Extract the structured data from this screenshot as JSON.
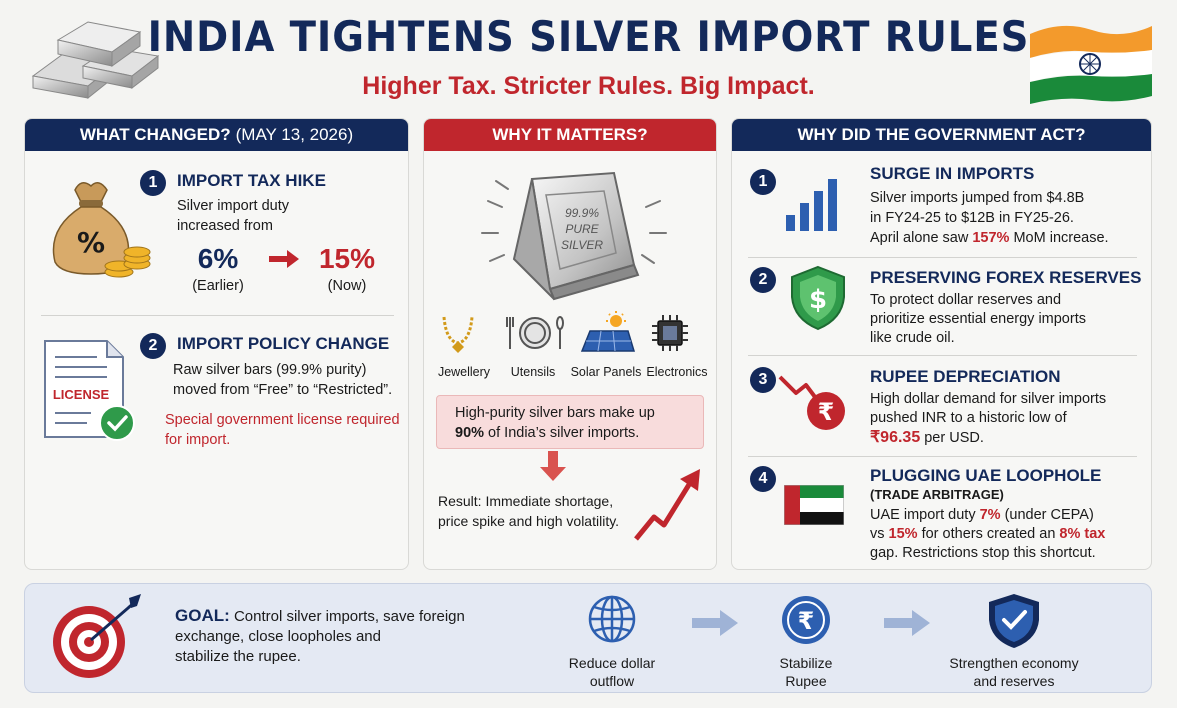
{
  "header": {
    "title": "INDIA TIGHTENS SILVER IMPORT RULES",
    "subtitle": "Higher Tax. Stricter Rules. Big Impact."
  },
  "left_panel": {
    "heading": "WHAT CHANGED?",
    "heading_date": "(MAY 13, 2026)",
    "items": [
      {
        "num": "1",
        "title": "IMPORT TAX HIKE",
        "text_line1": "Silver import duty",
        "text_line2": "increased from",
        "old_value": "6%",
        "old_label": "(Earlier)",
        "new_value": "15%",
        "new_label": "(Now)",
        "icon_symbol": "%"
      },
      {
        "num": "2",
        "title": "IMPORT POLICY CHANGE",
        "text_line1": "Raw silver bars (99.9% purity)",
        "text_line2": "moved from “Free” to “Restricted”.",
        "note_line1": "Special government license required",
        "note_line2": "for import.",
        "doc_label": "LICENSE"
      }
    ]
  },
  "middle_panel": {
    "heading": "WHY IT MATTERS?",
    "bar_text": [
      "99.9%",
      "PURE",
      "SILVER"
    ],
    "uses": [
      "Jewellery",
      "Utensils",
      "Solar Panels",
      "Electronics"
    ],
    "callout_line1": "High-purity silver bars make up",
    "callout_bold": "90%",
    "callout_line2_rest": " of India’s silver imports.",
    "result_line1": "Result: Immediate shortage,",
    "result_line2": "price spike and high volatility."
  },
  "right_panel": {
    "heading": "WHY DID THE GOVERNMENT ACT?",
    "items": [
      {
        "num": "1",
        "title": "SURGE IN IMPORTS",
        "l1": "Silver imports jumped from $4.8B",
        "l2": "in FY24-25 to $12B in FY25-26.",
        "l3a": "April alone saw ",
        "l3b": "157%",
        "l3c": " MoM increase."
      },
      {
        "num": "2",
        "title": "PRESERVING FOREX RESERVES",
        "l1": "To protect dollar reserves and",
        "l2": "prioritize essential energy imports",
        "l3": "like crude oil.",
        "icon_symbol": "$"
      },
      {
        "num": "3",
        "title": "RUPEE DEPRECIATION",
        "l1": "High dollar demand for silver imports",
        "l2": "pushed INR to a historic low of",
        "l3a": "₹96.35",
        "l3b": " per USD.",
        "icon_symbol": "₹"
      },
      {
        "num": "4",
        "title": "PLUGGING UAE LOOPHOLE",
        "subtitle": "(TRADE ARBITRAGE)",
        "l1a": "UAE import duty ",
        "l1b": "7%",
        "l1c": " (under CEPA)",
        "l2a": "vs ",
        "l2b": "15%",
        "l2c": " for others created an ",
        "l2d": "8% tax",
        "l3": "gap. Restrictions stop this shortcut."
      }
    ]
  },
  "bottom": {
    "goal_label": "GOAL:",
    "goal_line1": " Control silver imports, save foreign",
    "goal_line2": "exchange, close loopholes and",
    "goal_line3": "stabilize the rupee.",
    "flow": [
      {
        "l1": "Reduce dollar",
        "l2": "outflow"
      },
      {
        "l1": "Stabilize",
        "l2": "Rupee",
        "symbol": "₹"
      },
      {
        "l1": "Strengthen economy",
        "l2": "and reserves"
      }
    ]
  },
  "colors": {
    "navy": "#13295a",
    "red": "#c0262d",
    "india_saffron": "#f39a2c",
    "india_green": "#1a8a3a"
  }
}
